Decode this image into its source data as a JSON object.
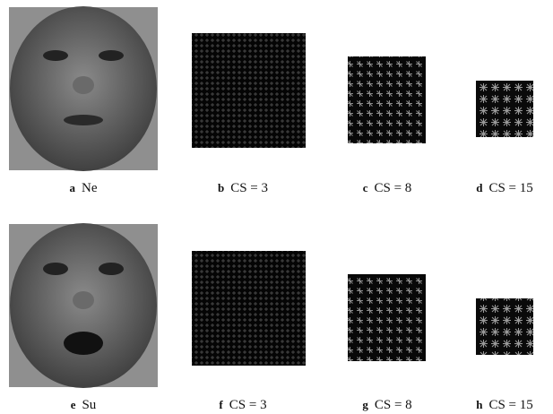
{
  "panels": [
    {
      "letter": "a",
      "caption": "Ne"
    },
    {
      "letter": "b",
      "caption": "CS = 3"
    },
    {
      "letter": "c",
      "caption": "CS = 8"
    },
    {
      "letter": "d",
      "caption": "CS = 15"
    },
    {
      "letter": "e",
      "caption": "Su"
    },
    {
      "letter": "f",
      "caption": "CS = 3"
    },
    {
      "letter": "g",
      "caption": "CS = 8"
    },
    {
      "letter": "h",
      "caption": "CS = 15"
    }
  ]
}
